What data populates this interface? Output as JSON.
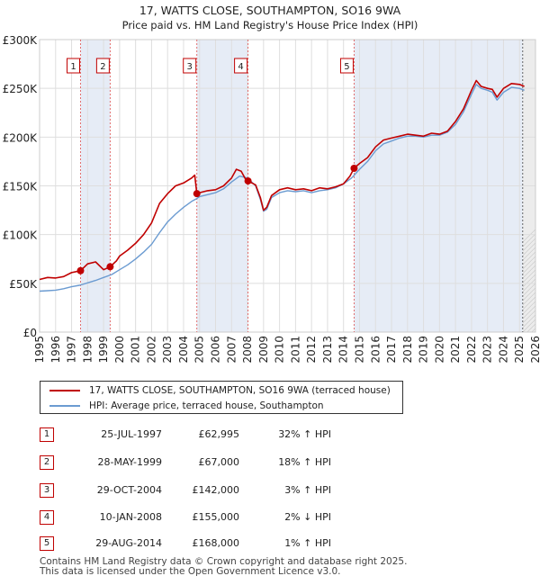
{
  "chart_data": {
    "type": "line",
    "title": "17, WATTS CLOSE, SOUTHAMPTON, SO16 9WA",
    "subtitle": "Price paid vs. HM Land Registry's House Price Index (HPI)",
    "xlim": [
      1995,
      2026
    ],
    "ylim": [
      0,
      300000
    ],
    "x_ticks": [
      "1995",
      "1996",
      "1997",
      "1998",
      "1999",
      "2000",
      "2001",
      "2002",
      "2003",
      "2004",
      "2005",
      "2006",
      "2007",
      "2008",
      "2009",
      "2010",
      "2011",
      "2012",
      "2013",
      "2014",
      "2015",
      "2016",
      "2017",
      "2018",
      "2019",
      "2020",
      "2021",
      "2022",
      "2023",
      "2024",
      "2025",
      "2026"
    ],
    "y_ticks": [
      {
        "value": 0,
        "label": "£0"
      },
      {
        "value": 50000,
        "label": "£50K"
      },
      {
        "value": 100000,
        "label": "£100K"
      },
      {
        "value": 150000,
        "label": "£150K"
      },
      {
        "value": 200000,
        "label": "£200K"
      },
      {
        "value": 250000,
        "label": "£250K"
      },
      {
        "value": 300000,
        "label": "£300K"
      }
    ],
    "grid": true,
    "ownership_bands": [
      [
        1997.56,
        1999.41
      ],
      [
        2004.83,
        2008.03
      ],
      [
        2014.66,
        2025.2
      ]
    ],
    "future_start": 2025.2,
    "series": [
      {
        "name": "17, WATTS CLOSE, SOUTHAMPTON, SO16 9WA (terraced house)",
        "color": "#c00000",
        "x": [
          1995,
          1995.5,
          1996,
          1996.5,
          1997,
          1997.56,
          1998,
          1998.5,
          1999,
          1999.41,
          1999.8,
          2000,
          2000.5,
          2001,
          2001.5,
          2002,
          2002.5,
          2003,
          2003.5,
          2004,
          2004.5,
          2004.7,
          2004.83,
          2005,
          2005.5,
          2006,
          2006.5,
          2007,
          2007.3,
          2007.6,
          2008,
          2008.03,
          2008.5,
          2008.8,
          2009,
          2009.2,
          2009.5,
          2010,
          2010.5,
          2011,
          2011.5,
          2012,
          2012.5,
          2013,
          2013.5,
          2014,
          2014.4,
          2014.66,
          2015,
          2015.5,
          2016,
          2016.5,
          2017,
          2017.5,
          2018,
          2018.5,
          2019,
          2019.5,
          2020,
          2020.5,
          2021,
          2021.5,
          2022,
          2022.3,
          2022.6,
          2023,
          2023.3,
          2023.6,
          2024,
          2024.5,
          2025,
          2025.3
        ],
        "values": [
          54000,
          56000,
          55500,
          57000,
          61000,
          62995,
          70000,
          72000,
          64000,
          67000,
          73000,
          78000,
          84000,
          91000,
          100000,
          112000,
          132000,
          142000,
          150000,
          153000,
          158000,
          161000,
          142000,
          143000,
          145000,
          146000,
          150000,
          158000,
          167000,
          165000,
          153000,
          155000,
          151000,
          138000,
          125000,
          128000,
          140000,
          146000,
          148000,
          146000,
          147000,
          145000,
          148000,
          147000,
          149000,
          152000,
          160000,
          168000,
          173000,
          179000,
          190000,
          197000,
          199000,
          201000,
          203000,
          202000,
          201000,
          204000,
          203000,
          206000,
          216000,
          229000,
          248000,
          258000,
          252000,
          250000,
          249000,
          241000,
          250000,
          255000,
          254000,
          252000
        ]
      },
      {
        "name": "HPI: Average price, terraced house, Southampton",
        "color": "#6b9bd1",
        "x": [
          1995,
          1995.5,
          1996,
          1996.5,
          1997,
          1997.5,
          1998,
          1998.5,
          1999,
          1999.5,
          2000,
          2000.5,
          2001,
          2001.5,
          2002,
          2002.5,
          2003,
          2003.5,
          2004,
          2004.5,
          2004.83,
          2005,
          2005.5,
          2006,
          2006.5,
          2007,
          2007.5,
          2008,
          2008.5,
          2008.8,
          2009,
          2009.2,
          2009.5,
          2010,
          2010.5,
          2011,
          2011.5,
          2012,
          2012.5,
          2013,
          2013.5,
          2014,
          2014.5,
          2015,
          2015.5,
          2016,
          2016.5,
          2017,
          2017.5,
          2018,
          2018.5,
          2019,
          2019.5,
          2020,
          2020.5,
          2021,
          2021.5,
          2022,
          2022.3,
          2022.6,
          2023,
          2023.3,
          2023.6,
          2024,
          2024.5,
          2025,
          2025.3
        ],
        "values": [
          42000,
          42500,
          43000,
          44500,
          46500,
          48000,
          50500,
          53000,
          56000,
          59000,
          64000,
          69000,
          75000,
          82000,
          90000,
          102000,
          113000,
          121000,
          128000,
          134000,
          137000,
          139000,
          141000,
          143000,
          147000,
          154000,
          160000,
          158000,
          150000,
          136000,
          124000,
          126000,
          138000,
          143000,
          145000,
          144000,
          145000,
          143000,
          145000,
          146000,
          148000,
          152000,
          158000,
          167000,
          175000,
          186000,
          193000,
          196000,
          199000,
          201000,
          201000,
          200000,
          202000,
          202000,
          205000,
          213000,
          226000,
          244000,
          254000,
          250000,
          248000,
          246000,
          238000,
          246000,
          251000,
          250000,
          248000
        ]
      }
    ],
    "sales": [
      {
        "label": "1",
        "x": 1997.56,
        "value": 62995
      },
      {
        "label": "2",
        "x": 1999.41,
        "value": 67000
      },
      {
        "label": "3",
        "x": 2004.83,
        "value": 142000
      },
      {
        "label": "4",
        "x": 2008.03,
        "value": 155000
      },
      {
        "label": "5",
        "x": 2014.66,
        "value": 168000
      }
    ]
  },
  "transactions": [
    {
      "num": "1",
      "date": "25-JUL-1997",
      "price": "£62,995",
      "hpi": "32% ↑ HPI"
    },
    {
      "num": "2",
      "date": "28-MAY-1999",
      "price": "£67,000",
      "hpi": "18% ↑ HPI"
    },
    {
      "num": "3",
      "date": "29-OCT-2004",
      "price": "£142,000",
      "hpi": "3% ↑ HPI"
    },
    {
      "num": "4",
      "date": "10-JAN-2008",
      "price": "£155,000",
      "hpi": "2% ↓ HPI"
    },
    {
      "num": "5",
      "date": "29-AUG-2014",
      "price": "£168,000",
      "hpi": "1% ↑ HPI"
    }
  ],
  "legend": {
    "property_label": "17, WATTS CLOSE, SOUTHAMPTON, SO16 9WA (terraced house)",
    "hpi_label": "HPI: Average price, terraced house, Southampton",
    "property_color": "#c00000",
    "hpi_color": "#6b9bd1"
  },
  "footer": {
    "line1": "Contains HM Land Registry data © Crown copyright and database right 2025.",
    "line2": "This data is licensed under the Open Government Licence v3.0."
  }
}
